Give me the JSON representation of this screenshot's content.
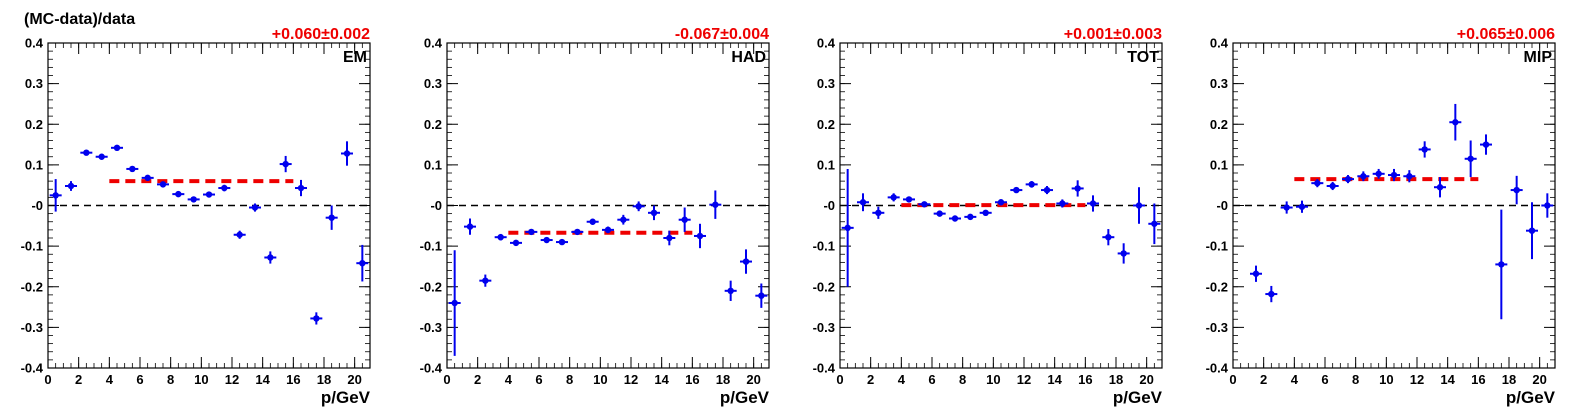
{
  "figure": {
    "ylabel": "(MC-data)/data"
  },
  "colors": {
    "points": "#0000ee",
    "fit": "#ee0000",
    "zero_line": "#000000",
    "fit_text": "#ee0000"
  },
  "chart_data": [
    {
      "type": "scatter",
      "panel_label": "EM",
      "fit_text": "+0.060±0.002",
      "xlabel": "p/GeV",
      "xlim": [
        0,
        21
      ],
      "ylim": [
        -0.4,
        0.4
      ],
      "x_ticks": [
        "0",
        "2",
        "4",
        "6",
        "8",
        "10",
        "12",
        "14",
        "16",
        "18",
        "20"
      ],
      "y_ticks": [
        "-0.4",
        "-0.3",
        "-0.2",
        "-0.1",
        "-0",
        "0.1",
        "0.2",
        "0.3",
        "0.4"
      ],
      "fit": {
        "x": [
          4,
          16
        ],
        "y": 0.06
      },
      "zero_line": 0,
      "points": {
        "x": [
          0.5,
          1.5,
          2.5,
          3.5,
          4.5,
          5.5,
          6.5,
          7.5,
          8.5,
          9.5,
          10.5,
          11.5,
          12.5,
          13.5,
          14.5,
          15.5,
          16.5,
          17.5,
          18.5,
          19.5,
          20.5
        ],
        "y": [
          0.025,
          0.048,
          0.13,
          0.12,
          0.142,
          0.09,
          0.068,
          0.052,
          0.028,
          0.015,
          0.027,
          0.043,
          -0.072,
          -0.005,
          -0.128,
          0.102,
          0.043,
          -0.278,
          -0.03,
          0.128,
          -0.142
        ],
        "err": [
          0.04,
          0.012,
          0.006,
          0.005,
          0.005,
          0.005,
          0.005,
          0.005,
          0.005,
          0.005,
          0.005,
          0.008,
          0.01,
          0.01,
          0.015,
          0.02,
          0.02,
          0.015,
          0.03,
          0.03,
          0.045
        ]
      }
    },
    {
      "type": "scatter",
      "panel_label": "HAD",
      "fit_text": "-0.067±0.004",
      "xlabel": "p/GeV",
      "xlim": [
        0,
        21
      ],
      "ylim": [
        -0.4,
        0.4
      ],
      "x_ticks": [
        "0",
        "2",
        "4",
        "6",
        "8",
        "10",
        "12",
        "14",
        "16",
        "18",
        "20"
      ],
      "y_ticks": [
        "-0.4",
        "-0.3",
        "-0.2",
        "-0.1",
        "-0",
        "0.1",
        "0.2",
        "0.3",
        "0.4"
      ],
      "fit": {
        "x": [
          4,
          16
        ],
        "y": -0.067
      },
      "zero_line": 0,
      "points": {
        "x": [
          0.5,
          1.5,
          2.5,
          3.5,
          4.5,
          5.5,
          6.5,
          7.5,
          8.5,
          9.5,
          10.5,
          11.5,
          12.5,
          13.5,
          14.5,
          15.5,
          16.5,
          17.5,
          18.5,
          19.5,
          20.5
        ],
        "y": [
          -0.24,
          -0.052,
          -0.185,
          -0.078,
          -0.092,
          -0.065,
          -0.085,
          -0.09,
          -0.065,
          -0.04,
          -0.06,
          -0.035,
          -0.002,
          -0.018,
          -0.08,
          -0.035,
          -0.075,
          0.002,
          -0.21,
          -0.138,
          -0.222
        ],
        "err": [
          0.13,
          0.02,
          0.015,
          0.008,
          0.007,
          0.006,
          0.006,
          0.007,
          0.006,
          0.007,
          0.008,
          0.012,
          0.012,
          0.018,
          0.018,
          0.03,
          0.03,
          0.035,
          0.025,
          0.03,
          0.03
        ]
      }
    },
    {
      "type": "scatter",
      "panel_label": "TOT",
      "fit_text": "+0.001±0.003",
      "xlabel": "p/GeV",
      "xlim": [
        0,
        21
      ],
      "ylim": [
        -0.4,
        0.4
      ],
      "x_ticks": [
        "0",
        "2",
        "4",
        "6",
        "8",
        "10",
        "12",
        "14",
        "16",
        "18",
        "20"
      ],
      "y_ticks": [
        "-0.4",
        "-0.3",
        "-0.2",
        "-0.1",
        "-0",
        "0.1",
        "0.2",
        "0.3",
        "0.4"
      ],
      "fit": {
        "x": [
          4,
          16
        ],
        "y": 0.001
      },
      "zero_line": 0,
      "points": {
        "x": [
          0.5,
          1.5,
          2.5,
          3.5,
          4.5,
          5.5,
          6.5,
          7.5,
          8.5,
          9.5,
          10.5,
          11.5,
          12.5,
          13.5,
          14.5,
          15.5,
          16.5,
          17.5,
          18.5,
          19.5,
          20.5
        ],
        "y": [
          -0.055,
          0.008,
          -0.018,
          0.02,
          0.015,
          0.003,
          -0.02,
          -0.032,
          -0.028,
          -0.018,
          0.008,
          0.038,
          0.052,
          0.038,
          0.005,
          0.042,
          0.005,
          -0.078,
          -0.118,
          0.0,
          -0.045
        ],
        "err": [
          0.145,
          0.022,
          0.015,
          0.01,
          0.006,
          0.005,
          0.005,
          0.005,
          0.005,
          0.006,
          0.006,
          0.006,
          0.008,
          0.01,
          0.01,
          0.02,
          0.02,
          0.02,
          0.025,
          0.045,
          0.05
        ]
      }
    },
    {
      "type": "scatter",
      "panel_label": "MIP",
      "fit_text": "+0.065±0.006",
      "xlabel": "p/GeV",
      "xlim": [
        0,
        21
      ],
      "ylim": [
        -0.4,
        0.4
      ],
      "x_ticks": [
        "0",
        "2",
        "4",
        "6",
        "8",
        "10",
        "12",
        "14",
        "16",
        "18",
        "20"
      ],
      "y_ticks": [
        "-0.4",
        "-0.3",
        "-0.2",
        "-0.1",
        "-0",
        "0.1",
        "0.2",
        "0.3",
        "0.4"
      ],
      "fit": {
        "x": [
          4,
          16
        ],
        "y": 0.065
      },
      "zero_line": 0,
      "points": {
        "x": [
          1.5,
          2.5,
          3.5,
          4.5,
          5.5,
          6.5,
          7.5,
          8.5,
          9.5,
          10.5,
          11.5,
          12.5,
          13.5,
          14.5,
          15.5,
          16.5,
          17.5,
          18.5,
          19.5,
          20.5
        ],
        "y": [
          -0.168,
          -0.218,
          -0.005,
          -0.003,
          0.055,
          0.048,
          0.065,
          0.072,
          0.078,
          0.075,
          0.072,
          0.138,
          0.045,
          0.205,
          0.115,
          0.15,
          -0.145,
          0.038,
          -0.062,
          0.0
        ],
        "err": [
          0.02,
          0.02,
          0.015,
          0.015,
          0.01,
          0.01,
          0.01,
          0.012,
          0.012,
          0.015,
          0.015,
          0.02,
          0.025,
          0.045,
          0.045,
          0.025,
          0.135,
          0.035,
          0.07,
          0.03
        ]
      }
    }
  ]
}
